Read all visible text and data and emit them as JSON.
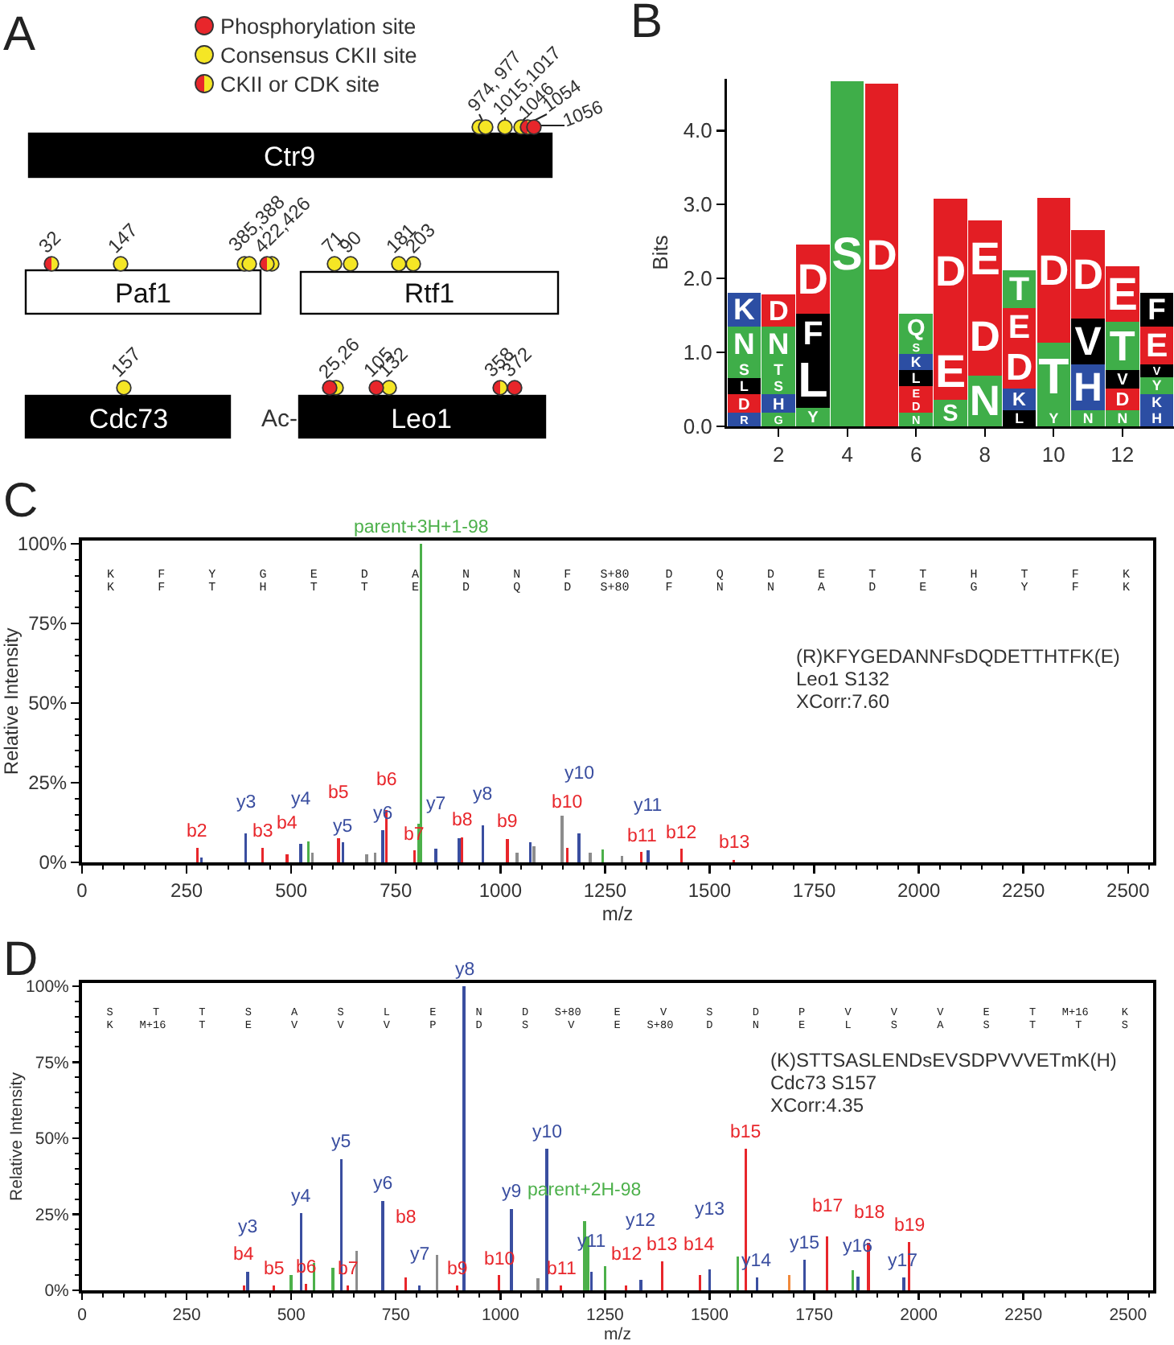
{
  "chart_data": [
    {
      "type": "other",
      "title": "A",
      "annotations": [
        "Phosphorylation site",
        "Consensus CKII site",
        "CKII or CDK site",
        "Ctr9",
        "Paf1",
        "Rtf1",
        "Cdc73",
        "Leo1",
        "Ac-",
        "974, 977",
        "1015,1017",
        "1046",
        "1054",
        "1056",
        "32",
        "147",
        "385,388",
        "422,426",
        "71",
        "90",
        "181",
        "203",
        "157",
        "25,26",
        "105",
        "132",
        "358",
        "372"
      ]
    },
    {
      "type": "bar",
      "title": "B",
      "ylabel": "Bits",
      "stacked": true,
      "x": [
        1,
        2,
        3,
        4,
        5,
        6,
        7,
        8,
        9,
        10,
        11,
        12,
        13
      ],
      "xlim": [
        0.5,
        13.5
      ],
      "xticks": [
        2,
        4,
        6,
        8,
        10,
        12
      ],
      "ylim": [
        0,
        4.7
      ],
      "yticks": [
        {
          "value": 0,
          "label": "0.0"
        },
        {
          "value": 1,
          "label": "1.0"
        },
        {
          "value": 2,
          "label": "2.0"
        },
        {
          "value": 3,
          "label": "3.0"
        },
        {
          "value": 4,
          "label": "4.0"
        }
      ],
      "series": [
        {
          "values": [
            0.18,
            0.18,
            0.25,
            4.67,
            4.64,
            0.18,
            0.36,
            0.69,
            0.22,
            0.22,
            0.22,
            0.22,
            0.22
          ],
          "colors": [
            "#2c4ea3",
            "#3fae49",
            "#3fae49",
            "#3fae49",
            "#e31e24",
            "#3fae49",
            "#3fae49",
            "#3fae49",
            "#000000",
            "#3fae49",
            "#3fae49",
            "#3fae49",
            "#2c4ea3"
          ],
          "value_labels": [
            "R",
            "G",
            "Y",
            "S",
            "D",
            "N",
            "S",
            "N",
            "L",
            "Y",
            "N",
            "N",
            "H"
          ]
        },
        {
          "values": [
            0.25,
            0.25,
            0.76,
            null,
            null,
            0.18,
            0.76,
            1.05,
            0.29,
            0.91,
            0.62,
            0.29,
            0.22
          ],
          "colors": [
            "#e31e24",
            "#2c4ea3",
            "#000000",
            null,
            null,
            "#e31e24",
            "#e31e24",
            "#e31e24",
            "#2c4ea3",
            "#3fae49",
            "#2c4ea3",
            "#e31e24",
            "#2c4ea3"
          ],
          "value_labels": [
            "D",
            "H",
            "L",
            null,
            null,
            "D",
            "E",
            "D",
            "K",
            "T",
            "H",
            "D",
            "K"
          ]
        },
        {
          "values": [
            0.22,
            0.22,
            0.51,
            null,
            null,
            0.18,
            1.96,
            1.05,
            0.58,
            1.96,
            0.62,
            0.25,
            0.22
          ],
          "colors": [
            "#000000",
            "#3fae49",
            "#000000",
            null,
            null,
            "#e31e24",
            "#e31e24",
            "#e31e24",
            "#e31e24",
            "#e31e24",
            "#000000",
            "#000000",
            "#3fae49"
          ],
          "value_labels": [
            "L",
            "S",
            "F",
            null,
            null,
            "E",
            "D",
            "E",
            "D",
            "D",
            "V",
            "V",
            "Y"
          ]
        },
        {
          "values": [
            0.24,
            0.24,
            0.94,
            null,
            null,
            0.22,
            null,
            null,
            0.51,
            null,
            1.2,
            0.65,
            0.18
          ],
          "colors": [
            "#3fae49",
            "#3fae49",
            "#e31e24",
            null,
            null,
            "#000000",
            null,
            null,
            "#e31e24",
            null,
            "#e31e24",
            "#3fae49",
            "#000000"
          ],
          "value_labels": [
            "S",
            "T",
            "D",
            null,
            null,
            "L",
            null,
            null,
            "E",
            null,
            "D",
            "T",
            "V"
          ]
        },
        {
          "values": [
            0.46,
            0.46,
            null,
            null,
            null,
            0.22,
            null,
            null,
            0.51,
            null,
            null,
            0.75,
            0.51
          ],
          "colors": [
            "#3fae49",
            "#3fae49",
            null,
            null,
            null,
            "#2c4ea3",
            null,
            null,
            "#3fae49",
            null,
            null,
            "#e31e24",
            "#e31e24"
          ],
          "value_labels": [
            "N",
            "N",
            null,
            null,
            null,
            "K",
            null,
            null,
            "T",
            null,
            null,
            "E",
            "E"
          ]
        },
        {
          "values": [
            0.46,
            0.43,
            null,
            null,
            null,
            0.18,
            null,
            null,
            null,
            null,
            null,
            null,
            0.46
          ],
          "colors": [
            "#2c4ea3",
            "#e31e24",
            null,
            null,
            null,
            "#3fae49",
            null,
            null,
            null,
            null,
            null,
            null,
            "#000000"
          ],
          "value_labels": [
            "K",
            "D",
            null,
            null,
            null,
            "S",
            null,
            null,
            null,
            null,
            null,
            null,
            "F"
          ]
        },
        {
          "values": [
            null,
            null,
            null,
            null,
            null,
            0.36,
            null,
            null,
            null,
            null,
            null,
            null,
            null
          ],
          "colors": [
            null,
            null,
            null,
            null,
            null,
            "#3fae49",
            null,
            null,
            null,
            null,
            null,
            null,
            null
          ],
          "value_labels": [
            null,
            null,
            null,
            null,
            null,
            "Q",
            null,
            null,
            null,
            null,
            null,
            null,
            null
          ]
        }
      ]
    },
    {
      "type": "bar",
      "title": "C",
      "xlabel": "m/z",
      "ylabel": "Relative Intensity",
      "annotations": [
        "K F Y G E D A N N F S+80 D Q D E T T H T F K",
        "K F T H T T E D Q D S+80 F N N A D E G Y F K",
        "(R)KFYGEDANNFsDQDETTHTFK(E)",
        "Leo1 S132",
        "XCorr:7.60"
      ],
      "xlim": [
        0,
        2560
      ],
      "xticks": [
        0,
        {
          "value": 50,
          "label": null
        },
        {
          "value": 100,
          "label": null
        },
        {
          "value": 150,
          "label": null
        },
        {
          "value": 200,
          "label": null
        },
        250,
        {
          "value": 300,
          "label": null
        },
        {
          "value": 350,
          "label": null
        },
        {
          "value": 400,
          "label": null
        },
        {
          "value": 450,
          "label": null
        },
        500,
        {
          "value": 550,
          "label": null
        },
        {
          "value": 600,
          "label": null
        },
        {
          "value": 650,
          "label": null
        },
        {
          "value": 700,
          "label": null
        },
        750,
        {
          "value": 800,
          "label": null
        },
        {
          "value": 850,
          "label": null
        },
        {
          "value": 900,
          "label": null
        },
        {
          "value": 950,
          "label": null
        },
        1000,
        {
          "value": 1050,
          "label": null
        },
        {
          "value": 1100,
          "label": null
        },
        {
          "value": 1150,
          "label": null
        },
        {
          "value": 1200,
          "label": null
        },
        1250,
        {
          "value": 1300,
          "label": null
        },
        {
          "value": 1350,
          "label": null
        },
        {
          "value": 1400,
          "label": null
        },
        {
          "value": 1450,
          "label": null
        },
        1500,
        {
          "value": 1550,
          "label": null
        },
        {
          "value": 1600,
          "label": null
        },
        {
          "value": 1650,
          "label": null
        },
        {
          "value": 1700,
          "label": null
        },
        1750,
        {
          "value": 1800,
          "label": null
        },
        {
          "value": 1850,
          "label": null
        },
        {
          "value": 1900,
          "label": null
        },
        {
          "value": 1950,
          "label": null
        },
        2000,
        {
          "value": 2050,
          "label": null
        },
        {
          "value": 2100,
          "label": null
        },
        {
          "value": 2150,
          "label": null
        },
        {
          "value": 2200,
          "label": null
        },
        2250,
        {
          "value": 2300,
          "label": null
        },
        {
          "value": 2350,
          "label": null
        },
        {
          "value": 2400,
          "label": null
        },
        {
          "value": 2450,
          "label": null
        },
        2500,
        {
          "value": 2550,
          "label": null
        }
      ],
      "ylim": [
        0,
        101
      ],
      "yticks": [
        {
          "value": 0,
          "label": "0%"
        },
        {
          "value": 5,
          "label": null
        },
        {
          "value": 10,
          "label": null
        },
        {
          "value": 15,
          "label": null
        },
        {
          "value": 20,
          "label": null
        },
        {
          "value": 25,
          "label": "25%"
        },
        {
          "value": 30,
          "label": null
        },
        {
          "value": 35,
          "label": null
        },
        {
          "value": 40,
          "label": null
        },
        {
          "value": 45,
          "label": null
        },
        {
          "value": 50,
          "label": "50%"
        },
        {
          "value": 55,
          "label": null
        },
        {
          "value": 60,
          "label": null
        },
        {
          "value": 65,
          "label": null
        },
        {
          "value": 70,
          "label": null
        },
        {
          "value": 75,
          "label": "75%"
        },
        {
          "value": 80,
          "label": null
        },
        {
          "value": 85,
          "label": null
        },
        {
          "value": 90,
          "label": null
        },
        {
          "value": 95,
          "label": null
        },
        {
          "value": 100,
          "label": "100%"
        }
      ],
      "series": [
        {
          "color": "#e8262b",
          "x": [
            276,
            432,
            490,
            613,
            727,
            795,
            908,
            1017,
            1160,
            1337,
            1433,
            1558
          ],
          "values": [
            4.5,
            4.5,
            2.5,
            7.6,
            16.3,
            3.7,
            7.9,
            7.4,
            4.5,
            3.2,
            4.2,
            0.8
          ],
          "value_labels": [
            "b2",
            "b3",
            "b4",
            "b5",
            "b6",
            "b7",
            "b8",
            "b9",
            "b10",
            "b11",
            "b12",
            "b13"
          ]
        },
        {
          "color": "#3a4ea0",
          "x": [
            285,
            391,
            523,
            624,
            719,
            846,
            901,
            958,
            1071,
            1188,
            1353
          ],
          "values": [
            1.5,
            9.1,
            5.7,
            6.2,
            10.1,
            4.2,
            7.5,
            11.6,
            6.2,
            9.2,
            3.7
          ],
          "value_labels": [
            null,
            "y3",
            "y4",
            "y5",
            "y6",
            "y7",
            null,
            "y8",
            null,
            "y10",
            "y11"
          ]
        },
        {
          "color": "#4cb04a",
          "x": [
            541,
            804,
            810,
            1244
          ],
          "values": [
            6.6,
            12.1,
            100,
            4
          ],
          "value_labels": [
            null,
            null,
            "parent+3H+1-98",
            null
          ]
        },
        {
          "colors": [
            "#8c8c8c",
            "#8c8c8c",
            "#8c8c8c",
            "#8c8c8c",
            "#8c8c8c",
            "#8c8c8c",
            "#8c8c8c",
            "#8c8c8c"
          ],
          "x": [
            551,
            680,
            700,
            1040,
            1080,
            1147,
            1215,
            1290
          ],
          "values": [
            3,
            2.5,
            3,
            3,
            5,
            14.6,
            3,
            2
          ]
        }
      ]
    },
    {
      "type": "bar",
      "title": "D",
      "xlabel": "m/z",
      "ylabel": "Relative Intensity",
      "annotations": [
        "S T T S A S L E N D S+80 E V S D P V V V E T M+16 K",
        "K M+16 T E V V V P D S V E S+80 D N E L S A S T T S",
        "(K)STTSASLENDsEVSDPVVVETmK(H)",
        "Cdc73 S157",
        "XCorr:4.35"
      ],
      "xlim": [
        0,
        2560
      ],
      "xticks": [
        0,
        {
          "value": 50,
          "label": null
        },
        {
          "value": 100,
          "label": null
        },
        {
          "value": 150,
          "label": null
        },
        {
          "value": 200,
          "label": null
        },
        250,
        {
          "value": 300,
          "label": null
        },
        {
          "value": 350,
          "label": null
        },
        {
          "value": 400,
          "label": null
        },
        {
          "value": 450,
          "label": null
        },
        500,
        {
          "value": 550,
          "label": null
        },
        {
          "value": 600,
          "label": null
        },
        {
          "value": 650,
          "label": null
        },
        {
          "value": 700,
          "label": null
        },
        750,
        {
          "value": 800,
          "label": null
        },
        {
          "value": 850,
          "label": null
        },
        {
          "value": 900,
          "label": null
        },
        {
          "value": 950,
          "label": null
        },
        1000,
        {
          "value": 1050,
          "label": null
        },
        {
          "value": 1100,
          "label": null
        },
        {
          "value": 1150,
          "label": null
        },
        {
          "value": 1200,
          "label": null
        },
        1250,
        {
          "value": 1300,
          "label": null
        },
        {
          "value": 1350,
          "label": null
        },
        {
          "value": 1400,
          "label": null
        },
        {
          "value": 1450,
          "label": null
        },
        1500,
        {
          "value": 1550,
          "label": null
        },
        {
          "value": 1600,
          "label": null
        },
        {
          "value": 1650,
          "label": null
        },
        {
          "value": 1700,
          "label": null
        },
        1750,
        {
          "value": 1800,
          "label": null
        },
        {
          "value": 1850,
          "label": null
        },
        {
          "value": 1900,
          "label": null
        },
        {
          "value": 1950,
          "label": null
        },
        2000,
        {
          "value": 2050,
          "label": null
        },
        {
          "value": 2100,
          "label": null
        },
        {
          "value": 2150,
          "label": null
        },
        {
          "value": 2200,
          "label": null
        },
        2250,
        {
          "value": 2300,
          "label": null
        },
        {
          "value": 2350,
          "label": null
        },
        {
          "value": 2400,
          "label": null
        },
        {
          "value": 2450,
          "label": null
        },
        2500,
        {
          "value": 2550,
          "label": null
        }
      ],
      "ylim": [
        0,
        101
      ],
      "yticks": [
        {
          "value": 0,
          "label": "0%"
        },
        {
          "value": 5,
          "label": null
        },
        {
          "value": 10,
          "label": null
        },
        {
          "value": 15,
          "label": null
        },
        {
          "value": 20,
          "label": null
        },
        {
          "value": 25,
          "label": "25%"
        },
        {
          "value": 30,
          "label": null
        },
        {
          "value": 35,
          "label": null
        },
        {
          "value": 40,
          "label": null
        },
        {
          "value": 45,
          "label": null
        },
        {
          "value": 50,
          "label": "50%"
        },
        {
          "value": 55,
          "label": null
        },
        {
          "value": 60,
          "label": null
        },
        {
          "value": 65,
          "label": null
        },
        {
          "value": 70,
          "label": null
        },
        {
          "value": 75,
          "label": "75%"
        },
        {
          "value": 80,
          "label": null
        },
        {
          "value": 85,
          "label": null
        },
        {
          "value": 90,
          "label": null
        },
        {
          "value": 95,
          "label": null
        },
        {
          "value": 100,
          "label": "100%"
        }
      ],
      "series": [
        {
          "color": "#e8262b",
          "x": [
            387,
            458,
            535,
            635,
            774,
            896,
            996,
            1144,
            1300,
            1387,
            1477,
            1587,
            1781,
            1880,
            1977
          ],
          "values": [
            1.5,
            1.5,
            2,
            1.5,
            4.2,
            1.5,
            5,
            1.5,
            1.5,
            9.6,
            5,
            46.5,
            17.6,
            15.6,
            15.9
          ],
          "value_labels": [
            "b4",
            "b5",
            "b6",
            "b7",
            "b8",
            "b9",
            "b10",
            "b11",
            "b12",
            "b13",
            "b14",
            "b15",
            "b17",
            "b18",
            "b19"
          ]
        },
        {
          "color": "#3a4ea0",
          "x": [
            396,
            524,
            620,
            719,
            806,
            913,
            1026,
            1111,
            1218,
            1336,
            1500,
            1613,
            1727,
            1855,
            1964
          ],
          "values": [
            6,
            25.5,
            43.1,
            29.4,
            1.7,
            100,
            26.8,
            46.6,
            6,
            3.4,
            7,
            4.2,
            10,
            4.5,
            4.2
          ],
          "value_labels": [
            "y3",
            "y4",
            "y5",
            "y6",
            "y7",
            "y8",
            "y9",
            "y10",
            "y11",
            "y12",
            "y13",
            "y14",
            "y15",
            "y16",
            "y17"
          ]
        },
        {
          "color": "#4cb04a",
          "x": [
            500,
            554,
            600,
            1201,
            1209,
            1250,
            1567,
            1842
          ],
          "values": [
            5,
            9,
            7.5,
            22.7,
            17.6,
            8,
            11.2,
            6.7
          ],
          "value_labels": [
            null,
            null,
            null,
            "parent+2H-98",
            null,
            null,
            null,
            null
          ]
        },
        {
          "colors": [
            "#8c8c8c",
            "#8c8c8c",
            "#8c8c8c",
            "#f08a3c"
          ],
          "x": [
            656,
            849,
            1090,
            1690
          ],
          "values": [
            13,
            11.7,
            4,
            5
          ]
        }
      ]
    }
  ]
}
